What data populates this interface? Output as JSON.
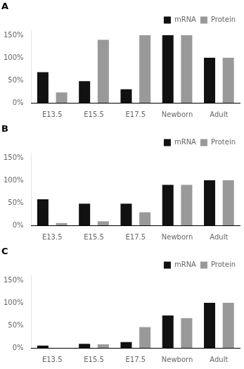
{
  "chart_data": [
    {
      "type": "bar",
      "title": "A",
      "categories": [
        "E13.5",
        "E15.5",
        "E17.5",
        "Newborn",
        "Adult"
      ],
      "series": [
        {
          "name": "mRNA",
          "color": "#111111",
          "values": [
            68,
            48,
            30,
            150,
            100
          ]
        },
        {
          "name": "Protein",
          "color": "#999999",
          "values": [
            23,
            140,
            150,
            150,
            100
          ]
        }
      ],
      "ylim": [
        0,
        160
      ],
      "yticks": [
        {
          "value": 0,
          "label": "0%"
        },
        {
          "value": 50,
          "label": "50%"
        },
        {
          "value": 100,
          "label": "100%"
        },
        {
          "value": 150,
          "label": "150%"
        }
      ],
      "grid": false,
      "legend": "upper right"
    },
    {
      "type": "bar",
      "title": "B",
      "categories": [
        "E13.5",
        "E15.5",
        "E17.5",
        "Newborn",
        "Adult"
      ],
      "series": [
        {
          "name": "mRNA",
          "color": "#111111",
          "values": [
            58,
            48,
            48,
            90,
            100
          ]
        },
        {
          "name": "Protein",
          "color": "#999999",
          "values": [
            5,
            9,
            29,
            90,
            100
          ]
        }
      ],
      "ylim": [
        0,
        160
      ],
      "yticks": [
        {
          "value": 0,
          "label": "0%"
        },
        {
          "value": 50,
          "label": "50%"
        },
        {
          "value": 100,
          "label": "100%"
        },
        {
          "value": 150,
          "label": "150%"
        }
      ],
      "grid": false,
      "legend": "upper right"
    },
    {
      "type": "bar",
      "title": "C",
      "categories": [
        "E13.5",
        "E15.5",
        "E17.5",
        "Newborn",
        "Adult"
      ],
      "series": [
        {
          "name": "mRNA",
          "color": "#111111",
          "values": [
            5,
            9,
            13,
            72,
            100
          ]
        },
        {
          "name": "Protein",
          "color": "#999999",
          "values": [
            0,
            8,
            46,
            66,
            100
          ]
        }
      ],
      "ylim": [
        0,
        160
      ],
      "yticks": [
        {
          "value": 0,
          "label": "0%"
        },
        {
          "value": 50,
          "label": "50%"
        },
        {
          "value": 100,
          "label": "100%"
        },
        {
          "value": 150,
          "label": "150%"
        }
      ],
      "grid": false,
      "legend": "upper right"
    }
  ]
}
